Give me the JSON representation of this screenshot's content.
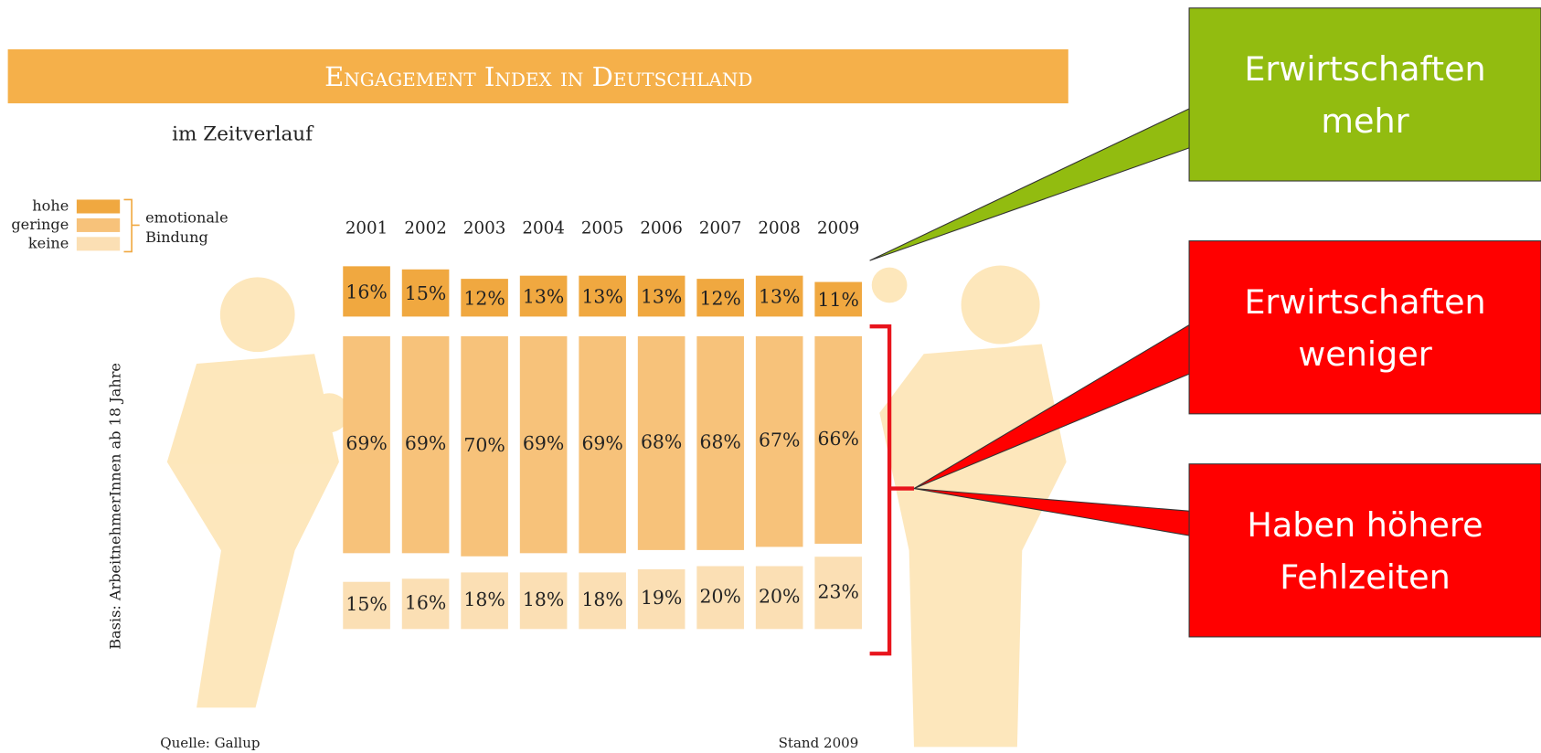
{
  "chart_data": {
    "type": "bar",
    "title": "Engagement Index in Deutschland",
    "subtitle": "im Zeitverlauf",
    "y_axis_label": "Basis: ArbeitnehmerInnen ab 18 Jahre",
    "source": "Quelle: Gallup",
    "note": "Stand 2009",
    "legend_title_lines": [
      "emotionale",
      "Bindung"
    ],
    "categories": [
      "2001",
      "2002",
      "2003",
      "2004",
      "2005",
      "2006",
      "2007",
      "2008",
      "2009"
    ],
    "series": [
      {
        "name": "hohe",
        "color": "#f0a840",
        "values": [
          16,
          15,
          12,
          13,
          13,
          13,
          12,
          13,
          11
        ],
        "value_labels": [
          "16%",
          "15%",
          "12%",
          "13%",
          "13%",
          "13%",
          "12%",
          "13%",
          "11%"
        ]
      },
      {
        "name": "geringe",
        "color": "#f7c27a",
        "values": [
          69,
          69,
          70,
          69,
          69,
          68,
          68,
          67,
          66
        ],
        "value_labels": [
          "69%",
          "69%",
          "70%",
          "69%",
          "69%",
          "68%",
          "68%",
          "67%",
          "66%"
        ]
      },
      {
        "name": "keine",
        "color": "#fbdfb4",
        "values": [
          15,
          16,
          18,
          18,
          18,
          19,
          20,
          20,
          23
        ],
        "value_labels": [
          "15%",
          "16%",
          "18%",
          "18%",
          "18%",
          "19%",
          "20%",
          "20%",
          "23%"
        ]
      }
    ],
    "callouts": [
      {
        "lines": [
          "Erwirtschaften",
          "mehr"
        ],
        "color": "#92bc10"
      },
      {
        "lines": [
          "Erwirtschaften",
          "weniger"
        ],
        "color": "#ff0000"
      },
      {
        "lines": [
          "Haben höhere",
          "Fehlzeiten"
        ],
        "color": "#ff0000"
      }
    ]
  }
}
